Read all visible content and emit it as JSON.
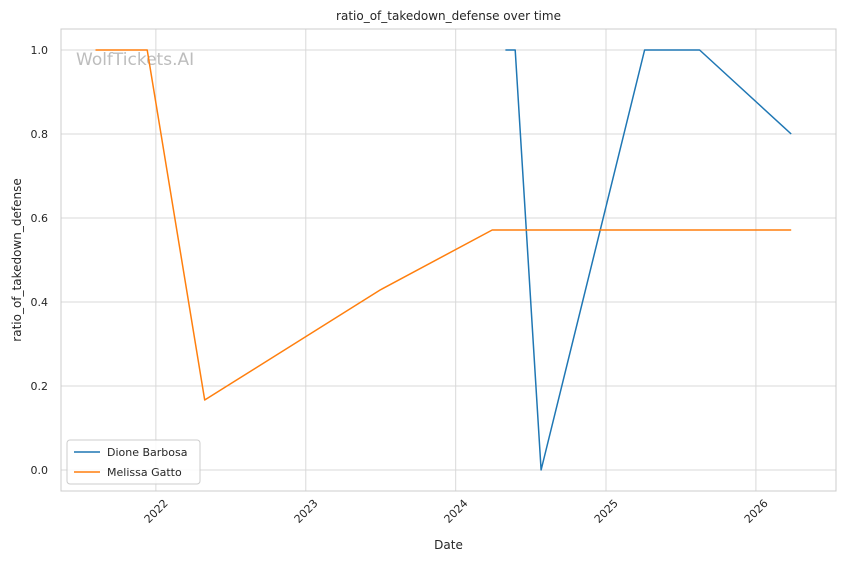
{
  "chart_data": {
    "type": "line",
    "title": "ratio_of_takedown_defense over time",
    "xlabel": "Date",
    "ylabel": "ratio_of_takedown_defense",
    "watermark": "WolfTickets.AI",
    "x_type": "date",
    "xlim": [
      "2021-05-15",
      "2026-07-15"
    ],
    "ylim": [
      -0.05,
      1.05
    ],
    "x_ticks": [
      {
        "value": "2022-01-01",
        "label": "2022"
      },
      {
        "value": "2023-01-01",
        "label": "2023"
      },
      {
        "value": "2024-01-01",
        "label": "2024"
      },
      {
        "value": "2025-01-01",
        "label": "2025"
      },
      {
        "value": "2026-01-01",
        "label": "2026"
      }
    ],
    "y_ticks": [
      {
        "value": 0.0,
        "label": "0.0"
      },
      {
        "value": 0.2,
        "label": "0.2"
      },
      {
        "value": 0.4,
        "label": "0.4"
      },
      {
        "value": 0.6,
        "label": "0.6"
      },
      {
        "value": 0.8,
        "label": "0.8"
      },
      {
        "value": 1.0,
        "label": "1.0"
      }
    ],
    "grid": true,
    "legend_position": "lower-left",
    "series": [
      {
        "name": "Dione Barbosa",
        "color": "#1f77b4",
        "points": [
          {
            "x": "2024-05-01",
            "y": 1.0
          },
          {
            "x": "2024-05-25",
            "y": 1.0
          },
          {
            "x": "2024-07-27",
            "y": 0.0
          },
          {
            "x": "2025-04-05",
            "y": 1.0
          },
          {
            "x": "2025-08-17",
            "y": 1.0
          },
          {
            "x": "2026-03-28",
            "y": 0.8
          }
        ]
      },
      {
        "name": "Melissa Gatto",
        "color": "#ff7f0e",
        "points": [
          {
            "x": "2021-08-07",
            "y": 1.0
          },
          {
            "x": "2021-12-11",
            "y": 1.0
          },
          {
            "x": "2022-04-30",
            "y": 0.1667
          },
          {
            "x": "2023-07-01",
            "y": 0.4286
          },
          {
            "x": "2024-03-30",
            "y": 0.5714
          },
          {
            "x": "2026-03-28",
            "y": 0.5714
          }
        ]
      }
    ]
  }
}
